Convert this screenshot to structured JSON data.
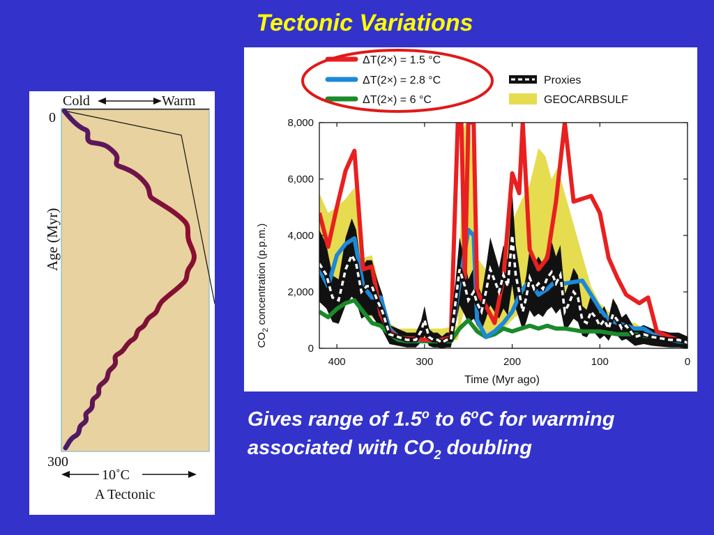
{
  "slide": {
    "title": "Tectonic Variations",
    "caption": {
      "line1_prefix": "Gives range of 1.5",
      "deg1": "o",
      "line1_mid": " to 6",
      "deg2": "o",
      "line1_suffix": "C for warming",
      "line2_prefix": "associated with CO",
      "sub2": "2",
      "line2_suffix": " doubling"
    }
  },
  "left_panel": {
    "label_cold": "Cold",
    "label_warm": "Warm",
    "label_age": "Age (Myr)",
    "tick_top": "0",
    "tick_bottom": "300",
    "scale_label": "10˚C",
    "panel_label": "A  Tectonic",
    "colors": {
      "background": "#e8d2a0",
      "curve_top": "#4a1a6a",
      "curve_mid": "#8e0e2e"
    }
  },
  "chart_data": {
    "type": "line",
    "xlabel": "Time (Myr ago)",
    "ylabel": "CO2 concentration (p.p.m.)",
    "ylabel_sub": "2",
    "ylabel_prefix": "CO",
    "ylabel_suffix": " concentration (p.p.m.)",
    "xlim": [
      420,
      0
    ],
    "ylim": [
      0,
      8000
    ],
    "xticks": [
      400,
      300,
      200,
      100,
      0
    ],
    "yticks": [
      0,
      2000,
      4000,
      6000,
      8000
    ],
    "xtick_labels": [
      "400",
      "300",
      "200",
      "100",
      "0"
    ],
    "ytick_labels": [
      "0",
      "2,000",
      "4,000",
      "6,000",
      "8,000"
    ],
    "legend": [
      {
        "name": "ΔT(2×) = 1.5 °C",
        "color": "#e82020",
        "style": "line"
      },
      {
        "name": "ΔT(2×) = 2.8 °C",
        "color": "#1e88d8",
        "style": "line"
      },
      {
        "name": "ΔT(2×) = 6 °C",
        "color": "#1a8a2a",
        "style": "line"
      },
      {
        "name": "Proxies",
        "color": "#111111",
        "style": "dashed-band"
      },
      {
        "name": "GEOCARBSULF",
        "color": "#e6dc50",
        "style": "band"
      }
    ],
    "legend_placement": "top",
    "series": [
      {
        "name": "ΔT(2×) = 1.5 °C",
        "color": "#e82020",
        "x": [
          420,
          410,
          400,
          390,
          380,
          370,
          360,
          350,
          340,
          330,
          320,
          310,
          300,
          290,
          280,
          270,
          262,
          258,
          254,
          250,
          244,
          240,
          230,
          220,
          210,
          200,
          192,
          188,
          180,
          170,
          160,
          150,
          140,
          130,
          110,
          100,
          90,
          80,
          70,
          55,
          45,
          35,
          20,
          10,
          0
        ],
        "y": [
          4800,
          3600,
          5000,
          6300,
          7000,
          2800,
          2900,
          1200,
          600,
          400,
          350,
          350,
          300,
          300,
          300,
          400,
          8000,
          8000,
          2500,
          8000,
          8000,
          2000,
          1500,
          900,
          2500,
          6200,
          5500,
          8000,
          3500,
          2800,
          3200,
          5200,
          8000,
          5200,
          5400,
          4800,
          3200,
          2500,
          1900,
          1600,
          1800,
          600,
          400,
          300,
          200
        ]
      },
      {
        "name": "ΔT(2×) = 2.8 °C",
        "color": "#1e88d8",
        "x": [
          420,
          410,
          400,
          390,
          380,
          370,
          360,
          350,
          340,
          330,
          320,
          310,
          300,
          290,
          280,
          270,
          260,
          250,
          244,
          240,
          230,
          220,
          210,
          200,
          190,
          180,
          170,
          160,
          150,
          140,
          120,
          100,
          90,
          80,
          70,
          60,
          50,
          40,
          30,
          20,
          10,
          0
        ],
        "y": [
          2800,
          2200,
          3300,
          3700,
          3900,
          2200,
          1800,
          1800,
          700,
          400,
          300,
          300,
          300,
          300,
          300,
          300,
          2300,
          4200,
          4000,
          1000,
          400,
          600,
          900,
          1300,
          2000,
          2400,
          1900,
          2100,
          2400,
          2300,
          2400,
          1400,
          1000,
          900,
          800,
          700,
          700,
          500,
          400,
          300,
          250,
          200
        ]
      },
      {
        "name": "ΔT(2×) = 6 °C",
        "color": "#1a8a2a",
        "x": [
          420,
          410,
          400,
          390,
          380,
          370,
          360,
          350,
          340,
          330,
          320,
          310,
          300,
          290,
          280,
          270,
          260,
          250,
          240,
          230,
          220,
          210,
          200,
          190,
          180,
          170,
          160,
          150,
          140,
          120,
          100,
          80,
          60,
          40,
          20,
          10,
          0
        ],
        "y": [
          1300,
          1100,
          1400,
          1600,
          1700,
          1300,
          900,
          800,
          500,
          300,
          250,
          250,
          250,
          250,
          250,
          250,
          700,
          1000,
          600,
          400,
          500,
          700,
          600,
          700,
          800,
          700,
          800,
          700,
          700,
          600,
          600,
          500,
          500,
          400,
          300,
          250,
          200
        ]
      },
      {
        "name": "Proxies",
        "color": "#111111",
        "x": [
          420,
          412,
          405,
          398,
          390,
          383,
          378,
          372,
          366,
          360,
          354,
          348,
          340,
          330,
          320,
          310,
          304,
          300,
          295,
          290,
          285,
          280,
          275,
          270,
          264,
          260,
          254,
          250,
          244,
          240,
          235,
          230,
          225,
          220,
          215,
          210,
          205,
          200,
          196,
          192,
          188,
          184,
          180,
          175,
          170,
          165,
          160,
          155,
          150,
          145,
          140,
          135,
          130,
          125,
          120,
          115,
          110,
          105,
          100,
          95,
          90,
          85,
          80,
          75,
          70,
          65,
          60,
          50,
          40,
          30,
          20,
          10,
          0
        ],
        "y": [
          3000,
          2600,
          1800,
          1700,
          2800,
          3300,
          3000,
          2000,
          2200,
          2200,
          1700,
          1300,
          500,
          400,
          300,
          300,
          600,
          1000,
          400,
          300,
          300,
          200,
          300,
          300,
          1800,
          2800,
          2200,
          1700,
          2000,
          1600,
          1300,
          2000,
          2800,
          2400,
          2000,
          2600,
          2200,
          4000,
          2600,
          2000,
          1300,
          1800,
          2500,
          2100,
          2300,
          2100,
          2500,
          2700,
          2300,
          2600,
          1300,
          1600,
          2000,
          1800,
          1000,
          900,
          1300,
          1100,
          800,
          1000,
          700,
          1200,
          1000,
          700,
          800,
          600,
          400,
          500,
          400,
          350,
          300,
          300,
          200
        ]
      },
      {
        "name": "GEOCARBSULF band upper",
        "color": "#e6dc50",
        "x": [
          420,
          410,
          400,
          390,
          380,
          370,
          360,
          350,
          340,
          330,
          320,
          300,
          280,
          262,
          256,
          252,
          248,
          244,
          240,
          230,
          220,
          210,
          200,
          190,
          180,
          170,
          162,
          155,
          148,
          140,
          130,
          120,
          110,
          100,
          90,
          80,
          70,
          60,
          50,
          40,
          30,
          20,
          10,
          0
        ],
        "y": [
          5500,
          4800,
          5000,
          5300,
          5700,
          3200,
          3300,
          2000,
          900,
          700,
          700,
          700,
          700,
          800,
          7800,
          8000,
          8000,
          6000,
          3200,
          2800,
          2200,
          3000,
          4500,
          5200,
          5800,
          7100,
          6800,
          6000,
          6400,
          5500,
          4400,
          3300,
          2200,
          1600,
          1300,
          1100,
          900,
          900,
          700,
          500,
          400,
          350,
          300,
          300
        ]
      },
      {
        "name": "GEOCARBSULF band lower",
        "color": "#e6dc50",
        "x": [
          420,
          410,
          400,
          390,
          380,
          370,
          360,
          350,
          340,
          330,
          320,
          300,
          280,
          262,
          256,
          252,
          248,
          244,
          240,
          230,
          220,
          210,
          200,
          190,
          180,
          170,
          160,
          150,
          140,
          130,
          120,
          110,
          100,
          90,
          80,
          70,
          60,
          50,
          40,
          30,
          20,
          10,
          0
        ],
        "y": [
          1700,
          1500,
          2000,
          2300,
          2500,
          1300,
          1100,
          800,
          400,
          300,
          250,
          250,
          250,
          300,
          1200,
          2000,
          2000,
          1200,
          700,
          500,
          500,
          700,
          1000,
          1300,
          1500,
          1600,
          1800,
          1700,
          1500,
          1300,
          1100,
          900,
          700,
          600,
          500,
          450,
          400,
          350,
          300,
          250,
          200,
          200,
          150
        ]
      }
    ]
  }
}
